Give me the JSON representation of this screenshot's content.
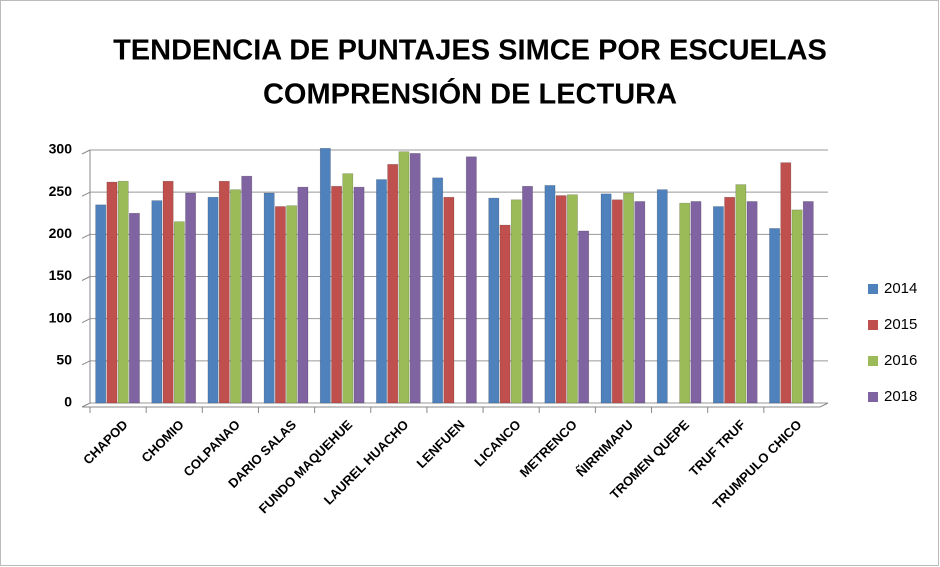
{
  "chart_data": {
    "type": "bar",
    "title": "TENDENCIA DE PUNTAJES SIMCE POR ESCUELAS",
    "subtitle": "COMPRENSIÓN DE LECTURA",
    "categories": [
      "CHAPOD",
      "CHOMIO",
      "COLPANAO",
      "DARIO SALAS",
      "FUNDO MAQUEHUE",
      "LAUREL HUACHO",
      "LENFUEN",
      "LICANCO",
      "METRENCO",
      "ÑIRRIMAPU",
      "TROMEN QUEPE",
      "TRUF TRUF",
      "TRUMPULO CHICO"
    ],
    "series": [
      {
        "name": "2014",
        "color": "#4f81bd",
        "values": [
          235,
          240,
          244,
          249,
          302,
          265,
          267,
          243,
          258,
          248,
          253,
          233,
          207
        ]
      },
      {
        "name": "2015",
        "color": "#c0504d",
        "values": [
          262,
          263,
          263,
          233,
          257,
          283,
          244,
          211,
          246,
          241,
          null,
          244,
          285
        ]
      },
      {
        "name": "2016",
        "color": "#9bbb59",
        "values": [
          263,
          215,
          253,
          234,
          272,
          298,
          null,
          241,
          247,
          249,
          237,
          259,
          229
        ]
      },
      {
        "name": "2018",
        "color": "#8064a2",
        "values": [
          225,
          249,
          269,
          256,
          256,
          296,
          292,
          257,
          204,
          239,
          239,
          239,
          239
        ]
      }
    ],
    "ylim": [
      0,
      300
    ],
    "yticks": [
      0,
      50,
      100,
      150,
      200,
      250,
      300
    ],
    "grid": true,
    "legend": "right"
  }
}
